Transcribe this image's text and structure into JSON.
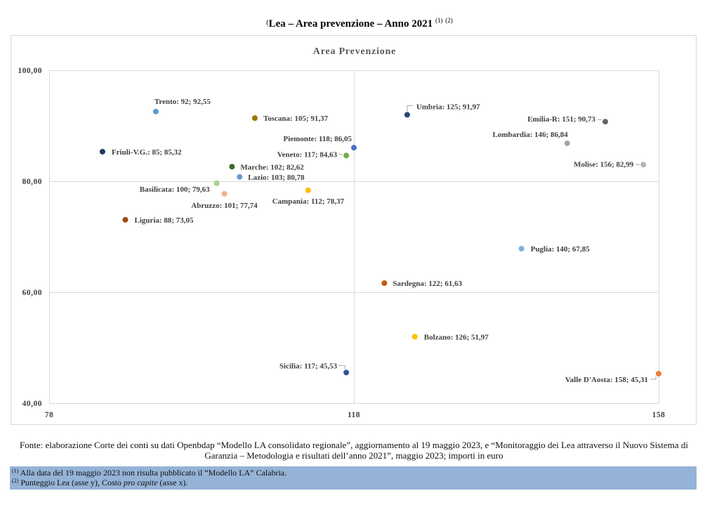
{
  "header": {
    "title_prefix": "(",
    "title": "Lea – Area prevenzione – Anno 2021",
    "note_refs": [
      "(1)",
      "(2)"
    ]
  },
  "chart_data": {
    "type": "scatter",
    "title": "Area Prevenzione",
    "xlim": [
      78,
      158
    ],
    "ylim": [
      40,
      100
    ],
    "x_ticks": [
      78,
      118,
      158
    ],
    "x_tick_labels": [
      "78",
      "118",
      "158"
    ],
    "y_ticks": [
      100,
      80,
      60,
      40
    ],
    "y_tick_labels": [
      "100,00",
      "80,00",
      "60,00",
      "40,00"
    ],
    "grid": true,
    "points": [
      {
        "label": "Trento: 92; 92,55",
        "x": 92,
        "y": 92.55,
        "color": "#5b9bd5"
      },
      {
        "label": "Toscana: 105; 91,37",
        "x": 105,
        "y": 91.37,
        "color": "#997300"
      },
      {
        "label": "Umbria: 125; 91,97",
        "x": 125,
        "y": 91.97,
        "color": "#264478"
      },
      {
        "label": "Emilia-R: 151; 90,73",
        "x": 151,
        "y": 90.73,
        "color": "#636363"
      },
      {
        "label": "Lombardia: 146; 86,84",
        "x": 146,
        "y": 86.84,
        "color": "#a5a5a5"
      },
      {
        "label": "Piemonte: 118; 86,05",
        "x": 118,
        "y": 86.05,
        "color": "#4472c4"
      },
      {
        "label": "Friuli-V.G.: 85; 85,32",
        "x": 85,
        "y": 85.32,
        "color": "#203864"
      },
      {
        "label": "Veneto: 117; 84,63",
        "x": 117,
        "y": 84.63,
        "color": "#70ad47"
      },
      {
        "label": "Molise: 156; 82,99",
        "x": 156,
        "y": 82.99,
        "color": "#b4b4b4"
      },
      {
        "label": "Marche: 102; 82,62",
        "x": 102,
        "y": 82.62,
        "color": "#43682b"
      },
      {
        "label": "Lazio: 103; 80,78",
        "x": 103,
        "y": 80.78,
        "color": "#6f96d4"
      },
      {
        "label": "Basilicata: 100; 79,63",
        "x": 100,
        "y": 79.63,
        "color": "#a9d18e"
      },
      {
        "label": "Abruzzo: 101; 77,74",
        "x": 101,
        "y": 77.74,
        "color": "#f4b183"
      },
      {
        "label": "Campania: 112; 78,37",
        "x": 112,
        "y": 78.37,
        "color": "#ffc000"
      },
      {
        "label": "Liguria: 88; 73,05",
        "x": 88,
        "y": 73.05,
        "color": "#9e480e"
      },
      {
        "label": "Puglia: 140; 67,85",
        "x": 140,
        "y": 67.85,
        "color": "#7fb0de"
      },
      {
        "label": "Sardegna: 122; 61,63",
        "x": 122,
        "y": 61.63,
        "color": "#c55a11"
      },
      {
        "label": "Bolzano: 126; 51,97",
        "x": 126,
        "y": 51.97,
        "color": "#ffc000"
      },
      {
        "label": "Sicilia: 117; 45,53",
        "x": 117,
        "y": 45.53,
        "color": "#2f5597"
      },
      {
        "label": "Valle D'Aosta: 158; 45,31",
        "x": 158,
        "y": 45.31,
        "color": "#ed7d31"
      }
    ]
  },
  "source": "Fonte: elaborazione Corte dei conti su dati Openbdap “Modello LA consolidato regionale”, aggiornamento al 19 maggio 2023, e “Monitoraggio dei Lea attraverso il Nuovo Sistema di Garanzia – Metodologia e risultati dell’anno 2021”, maggio 2023; importi in euro",
  "notes": [
    {
      "ref": "(1)",
      "text": "Alla data del 19 maggio 2023 non risulta pubblicato il “Modello LA” Calabria."
    },
    {
      "ref": "(2)",
      "text": "Punteggio Lea (asse y), Costo",
      "text_italic": "pro capite",
      "text_after": "(asse x)."
    }
  ]
}
